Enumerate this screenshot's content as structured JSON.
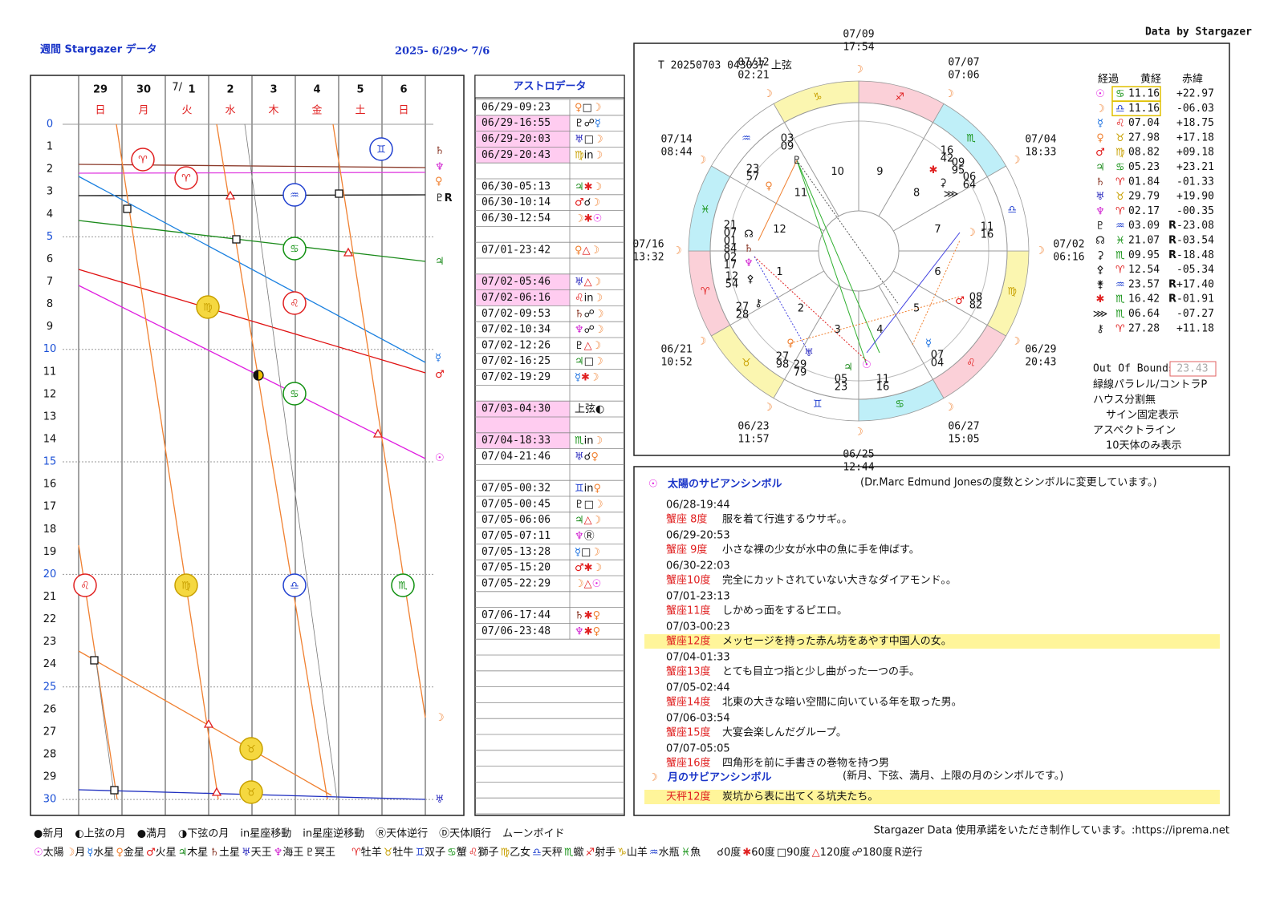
{
  "header": {
    "title": "週間 Stargazer データ",
    "dates": "2025- 6/29～ 7/6",
    "credit": "Data by Stargazer"
  },
  "week": {
    "days": [
      {
        "day": "29",
        "weekday": "日"
      },
      {
        "day": "30",
        "weekday": "月"
      },
      {
        "day": "1",
        "weekday": "火"
      },
      {
        "day": "2",
        "weekday": "水"
      },
      {
        "day": "3",
        "weekday": "木"
      },
      {
        "day": "4",
        "weekday": "金"
      },
      {
        "day": "5",
        "weekday": "土"
      },
      {
        "day": "6",
        "weekday": "日"
      }
    ],
    "month_mark": "7/",
    "hours": [
      0,
      1,
      2,
      3,
      4,
      5,
      6,
      7,
      8,
      9,
      10,
      11,
      12,
      13,
      14,
      15,
      16,
      17,
      18,
      19,
      20,
      21,
      22,
      23,
      24,
      25,
      26,
      27,
      28,
      29,
      30
    ],
    "signs": [
      "♈",
      "♈",
      "♊",
      "♒",
      "♋",
      "♍",
      "♌",
      "♋",
      "♌",
      "♍",
      "♎",
      "♏",
      "♉",
      "♉"
    ],
    "end_labels": [
      "♄",
      "♆",
      "♀",
      "♇R",
      "♃",
      "☿",
      "♂",
      "☉",
      "☽",
      "♅"
    ]
  },
  "aspects": {
    "title": "アストロデータ",
    "groups": [
      [
        {
          "time": "06/29-09:23",
          "event": "♀□☽"
        },
        {
          "time": "06/29-16:55",
          "event": "♇☍☿",
          "void": true
        },
        {
          "time": "06/29-20:03",
          "event": "♅□☽",
          "void": true
        },
        {
          "time": "06/29-20:43",
          "event": "♍in☽",
          "void": true
        }
      ],
      [
        {
          "time": "06/30-05:13",
          "event": "♃✱☽"
        },
        {
          "time": "06/30-10:14",
          "event": "♂☌☽"
        },
        {
          "time": "06/30-12:54",
          "event": "☽✱☉"
        }
      ],
      [
        {
          "time": "07/01-23:42",
          "event": "♀△☽"
        }
      ],
      [
        {
          "time": "07/02-05:46",
          "event": "♅△☽",
          "void": true
        },
        {
          "time": "07/02-06:16",
          "event": "♌in☽",
          "void": true
        },
        {
          "time": "07/02-09:53",
          "event": "♄☍☽"
        },
        {
          "time": "07/02-10:34",
          "event": "♆☍☽"
        },
        {
          "time": "07/02-12:26",
          "event": "♇△☽"
        },
        {
          "time": "07/02-16:25",
          "event": "♃□☽"
        },
        {
          "time": "07/02-19:29",
          "event": "☿✱☽"
        }
      ],
      [
        {
          "time": "07/03-04:30",
          "event": "上弦◐",
          "void": true
        }
      ],
      [
        {
          "time": "07/04-18:33",
          "event": "♏in☽",
          "void": true
        },
        {
          "time": "07/04-21:46",
          "event": "♅☌♀"
        }
      ],
      [
        {
          "time": "07/05-00:32",
          "event": "♊in♀"
        },
        {
          "time": "07/05-00:45",
          "event": "♇□☽"
        },
        {
          "time": "07/05-06:06",
          "event": "♃△☽"
        },
        {
          "time": "07/05-07:11",
          "event": "♆Ⓡ"
        },
        {
          "time": "07/05-13:28",
          "event": "☿□☽"
        },
        {
          "time": "07/05-15:20",
          "event": "♂✱☽"
        },
        {
          "time": "07/05-22:29",
          "event": "☽△☉"
        }
      ],
      [
        {
          "time": "07/06-17:44",
          "event": "♄✱♀"
        },
        {
          "time": "07/06-23:48",
          "event": "♆✱♀"
        }
      ]
    ]
  },
  "wheel": {
    "caption": "T 20250703 043037 上弦",
    "dates": [
      {
        "date": "07/02",
        "time": "06:16"
      },
      {
        "date": "07/04",
        "time": "18:33"
      },
      {
        "date": "07/07",
        "time": "07:06"
      },
      {
        "date": "07/09",
        "time": "17:54"
      },
      {
        "date": "07/12",
        "time": "02:21"
      },
      {
        "date": "07/14",
        "time": "08:44"
      },
      {
        "date": "07/16",
        "time": "13:32"
      },
      {
        "date": "06/21",
        "time": "10:52"
      },
      {
        "date": "06/23",
        "time": "11:57"
      },
      {
        "date": "06/25",
        "time": "12:44"
      },
      {
        "date": "06/27",
        "time": "15:05"
      },
      {
        "date": "06/29",
        "time": "20:43"
      }
    ],
    "signs": [
      "♈",
      "♉",
      "♊",
      "♋",
      "♌",
      "♍",
      "♎",
      "♏",
      "♐",
      "♑",
      "♒",
      "♓"
    ],
    "houses": [
      1,
      2,
      3,
      4,
      5,
      6,
      7,
      8,
      9,
      10,
      11,
      12
    ],
    "planets": [
      {
        "glyph": "♇",
        "deg": [
          "03",
          "09"
        ]
      },
      {
        "glyph": "♀",
        "deg": [
          "23",
          "57"
        ]
      },
      {
        "glyph": "☊",
        "deg": [
          "21",
          "07"
        ]
      },
      {
        "glyph": "♄",
        "deg": [
          "01",
          "84"
        ]
      },
      {
        "glyph": "♆",
        "deg": [
          "02",
          "17"
        ]
      },
      {
        "glyph": "⚴",
        "deg": [
          "12",
          "54"
        ]
      },
      {
        "glyph": "⚷",
        "deg": [
          "27",
          "28"
        ]
      },
      {
        "glyph": "♀",
        "deg": [
          "27",
          "98"
        ]
      },
      {
        "glyph": "♅",
        "deg": [
          "29",
          "79"
        ]
      },
      {
        "glyph": "♃",
        "deg": [
          "05",
          "23"
        ]
      },
      {
        "glyph": "☉",
        "deg": [
          "11",
          "16"
        ]
      },
      {
        "glyph": "☿",
        "deg": [
          "07",
          "04"
        ]
      },
      {
        "glyph": "♂",
        "deg": [
          "08",
          "82"
        ]
      },
      {
        "glyph": "☽",
        "deg": [
          "11",
          "16"
        ]
      },
      {
        "glyph": "✱",
        "deg": [
          "16",
          "42"
        ]
      },
      {
        "glyph": "⚳",
        "deg": [
          "09",
          "95"
        ]
      },
      {
        "glyph": "⋙",
        "deg": [
          "06",
          "64"
        ]
      }
    ]
  },
  "positions": {
    "headers": [
      "経過",
      "黄経",
      "赤緯"
    ],
    "rows": [
      {
        "glyph": "☉",
        "sign": "♋",
        "lon": "11.16",
        "dec": "+22.97"
      },
      {
        "glyph": "☽",
        "sign": "♎",
        "lon": "11.16",
        "dec": "-06.03"
      },
      {
        "glyph": "☿",
        "sign": "♌",
        "lon": "07.04",
        "dec": "+18.75"
      },
      {
        "glyph": "♀",
        "sign": "♉",
        "lon": "27.98",
        "dec": "+17.18"
      },
      {
        "glyph": "♂",
        "sign": "♍",
        "lon": "08.82",
        "dec": "+09.18"
      },
      {
        "glyph": "♃",
        "sign": "♋",
        "lon": "05.23",
        "dec": "+23.21"
      },
      {
        "glyph": "♄",
        "sign": "♈",
        "lon": "01.84",
        "dec": "-01.33"
      },
      {
        "glyph": "♅",
        "sign": "♉",
        "lon": "29.79",
        "dec": "+19.90"
      },
      {
        "glyph": "♆",
        "sign": "♈",
        "lon": "02.17",
        "dec": "-00.35"
      },
      {
        "glyph": "♇",
        "sign": "♒",
        "lon": "03.09",
        "r": "R",
        "dec": "-23.08"
      },
      {
        "glyph": "☊",
        "sign": "♓",
        "lon": "21.07",
        "r": "R",
        "dec": "-03.54"
      },
      {
        "glyph": "⚳",
        "sign": "♏",
        "lon": "09.95",
        "r": "R",
        "dec": "-18.48"
      },
      {
        "glyph": "⚴",
        "sign": "♈",
        "lon": "12.54",
        "dec": "-05.34"
      },
      {
        "glyph": "⚵",
        "sign": "♒",
        "lon": "23.57",
        "r": "R",
        "dec": "+17.40"
      },
      {
        "glyph": "✱",
        "sign": "♏",
        "lon": "16.42",
        "r": "R",
        "dec": "-01.91"
      },
      {
        "glyph": "⋙",
        "sign": "♏",
        "lon": "06.64",
        "dec": "-07.27"
      },
      {
        "glyph": "⚷",
        "sign": "♈",
        "lon": "27.28",
        "dec": "+11.18"
      }
    ]
  },
  "notes": {
    "oob_label": "Out Of Bounds",
    "oob_value": "23.43",
    "lines": [
      "緑線パラレル/コントラP",
      "ハウス分割無",
      "サイン固定表示",
      "アスペクトライン",
      "10天体のみ表示"
    ]
  },
  "sabian": {
    "sun": {
      "icon": "☉",
      "title": "太陽のサビアンシンボル",
      "note": "(Dr.Marc Edmund Jonesの度数とシンボルに変更しています。)",
      "entries": [
        {
          "time": "06/28-19:44",
          "sign": "蟹座 8度",
          "text": "服を着て行進するウサギ。。"
        },
        {
          "time": "06/29-20:53",
          "sign": "蟹座 9度",
          "text": "小さな裸の少女が水中の魚に手を伸ばす。"
        },
        {
          "time": "06/30-22:03",
          "sign": "蟹座10度",
          "text": "完全にカットされていない大きなダイアモンド。。"
        },
        {
          "time": "07/01-23:13",
          "sign": "蟹座11度",
          "text": "しかめっ面をするピエロ。"
        },
        {
          "time": "07/03-00:23",
          "sign": "蟹座12度",
          "text": "メッセージを持った赤ん坊をあやす中国人の女。",
          "highlight": true
        },
        {
          "time": "07/04-01:33",
          "sign": "蟹座13度",
          "text": "とても目立つ指と少し曲がった一つの手。"
        },
        {
          "time": "07/05-02:44",
          "sign": "蟹座14度",
          "text": "北東の大きな暗い空間に向いている年を取った男。"
        },
        {
          "time": "07/06-03:54",
          "sign": "蟹座15度",
          "text": "大宴会楽しんだグループ。"
        },
        {
          "time": "07/07-05:05",
          "sign": "蟹座16度",
          "text": "四角形を前に手書きの巻物を持つ男"
        }
      ]
    },
    "moon": {
      "icon": "☽",
      "title": "月のサビアンシンボル",
      "note": "(新月、下弦、満月、上限の月のシンボルです。)",
      "entries": [
        {
          "sign": "天秤12度",
          "text": "炭坑から表に出てくる坑夫たち。",
          "highlight": true
        }
      ]
    }
  },
  "footer": {
    "legend": [
      "●新月",
      "◐上弦の月",
      "●満月",
      "◑下弦の月",
      "in星座移動",
      "in星座逆移動",
      "Ⓡ天体逆行",
      "Ⓓ天体順行",
      "ムーンボイド"
    ],
    "usage": "Stargazer Data 使用承諾をいただき制作しています。:https://iprema.net",
    "planets": [
      "☉太陽",
      "☽月",
      "☿水星",
      "♀金星",
      "♂火星",
      "♃木星",
      "♄土星",
      "♅天王",
      "♆海王",
      "♇冥王"
    ],
    "signs": [
      "♈牡羊",
      "♉牡牛",
      "♊双子",
      "♋蟹",
      "♌獅子",
      "♍乙女",
      "♎天秤",
      "♏蠍",
      "♐射手",
      "♑山羊",
      "♒水瓶",
      "♓魚"
    ],
    "aspect_marks": [
      "☌0度",
      "✱60度",
      "□90度",
      "△120度",
      "☍180度",
      "R逆行"
    ]
  }
}
